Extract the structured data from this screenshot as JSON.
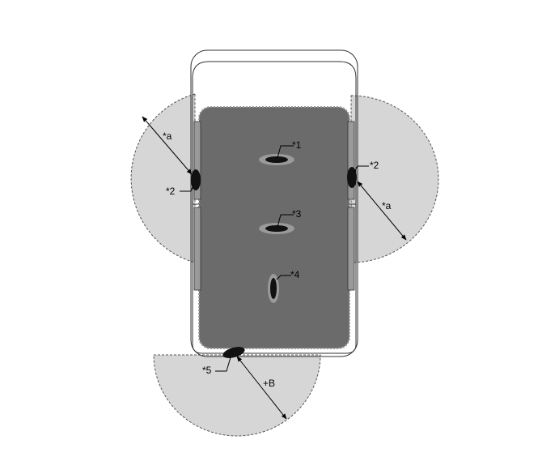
{
  "labels": {
    "sensor_1": "*1",
    "sensor_2_left": "*2",
    "sensor_2_right": "*2",
    "sensor_3": "*3",
    "sensor_4": "*4",
    "sensor_5": "*5",
    "dim_a_left": "*a",
    "dim_a_right": "*a",
    "dim_b": "+B"
  },
  "colors": {
    "detection_zone": "#d6d6d6",
    "cabin_area": "#6b6b6b",
    "sensor": "#111111",
    "background": "#ffffff"
  }
}
